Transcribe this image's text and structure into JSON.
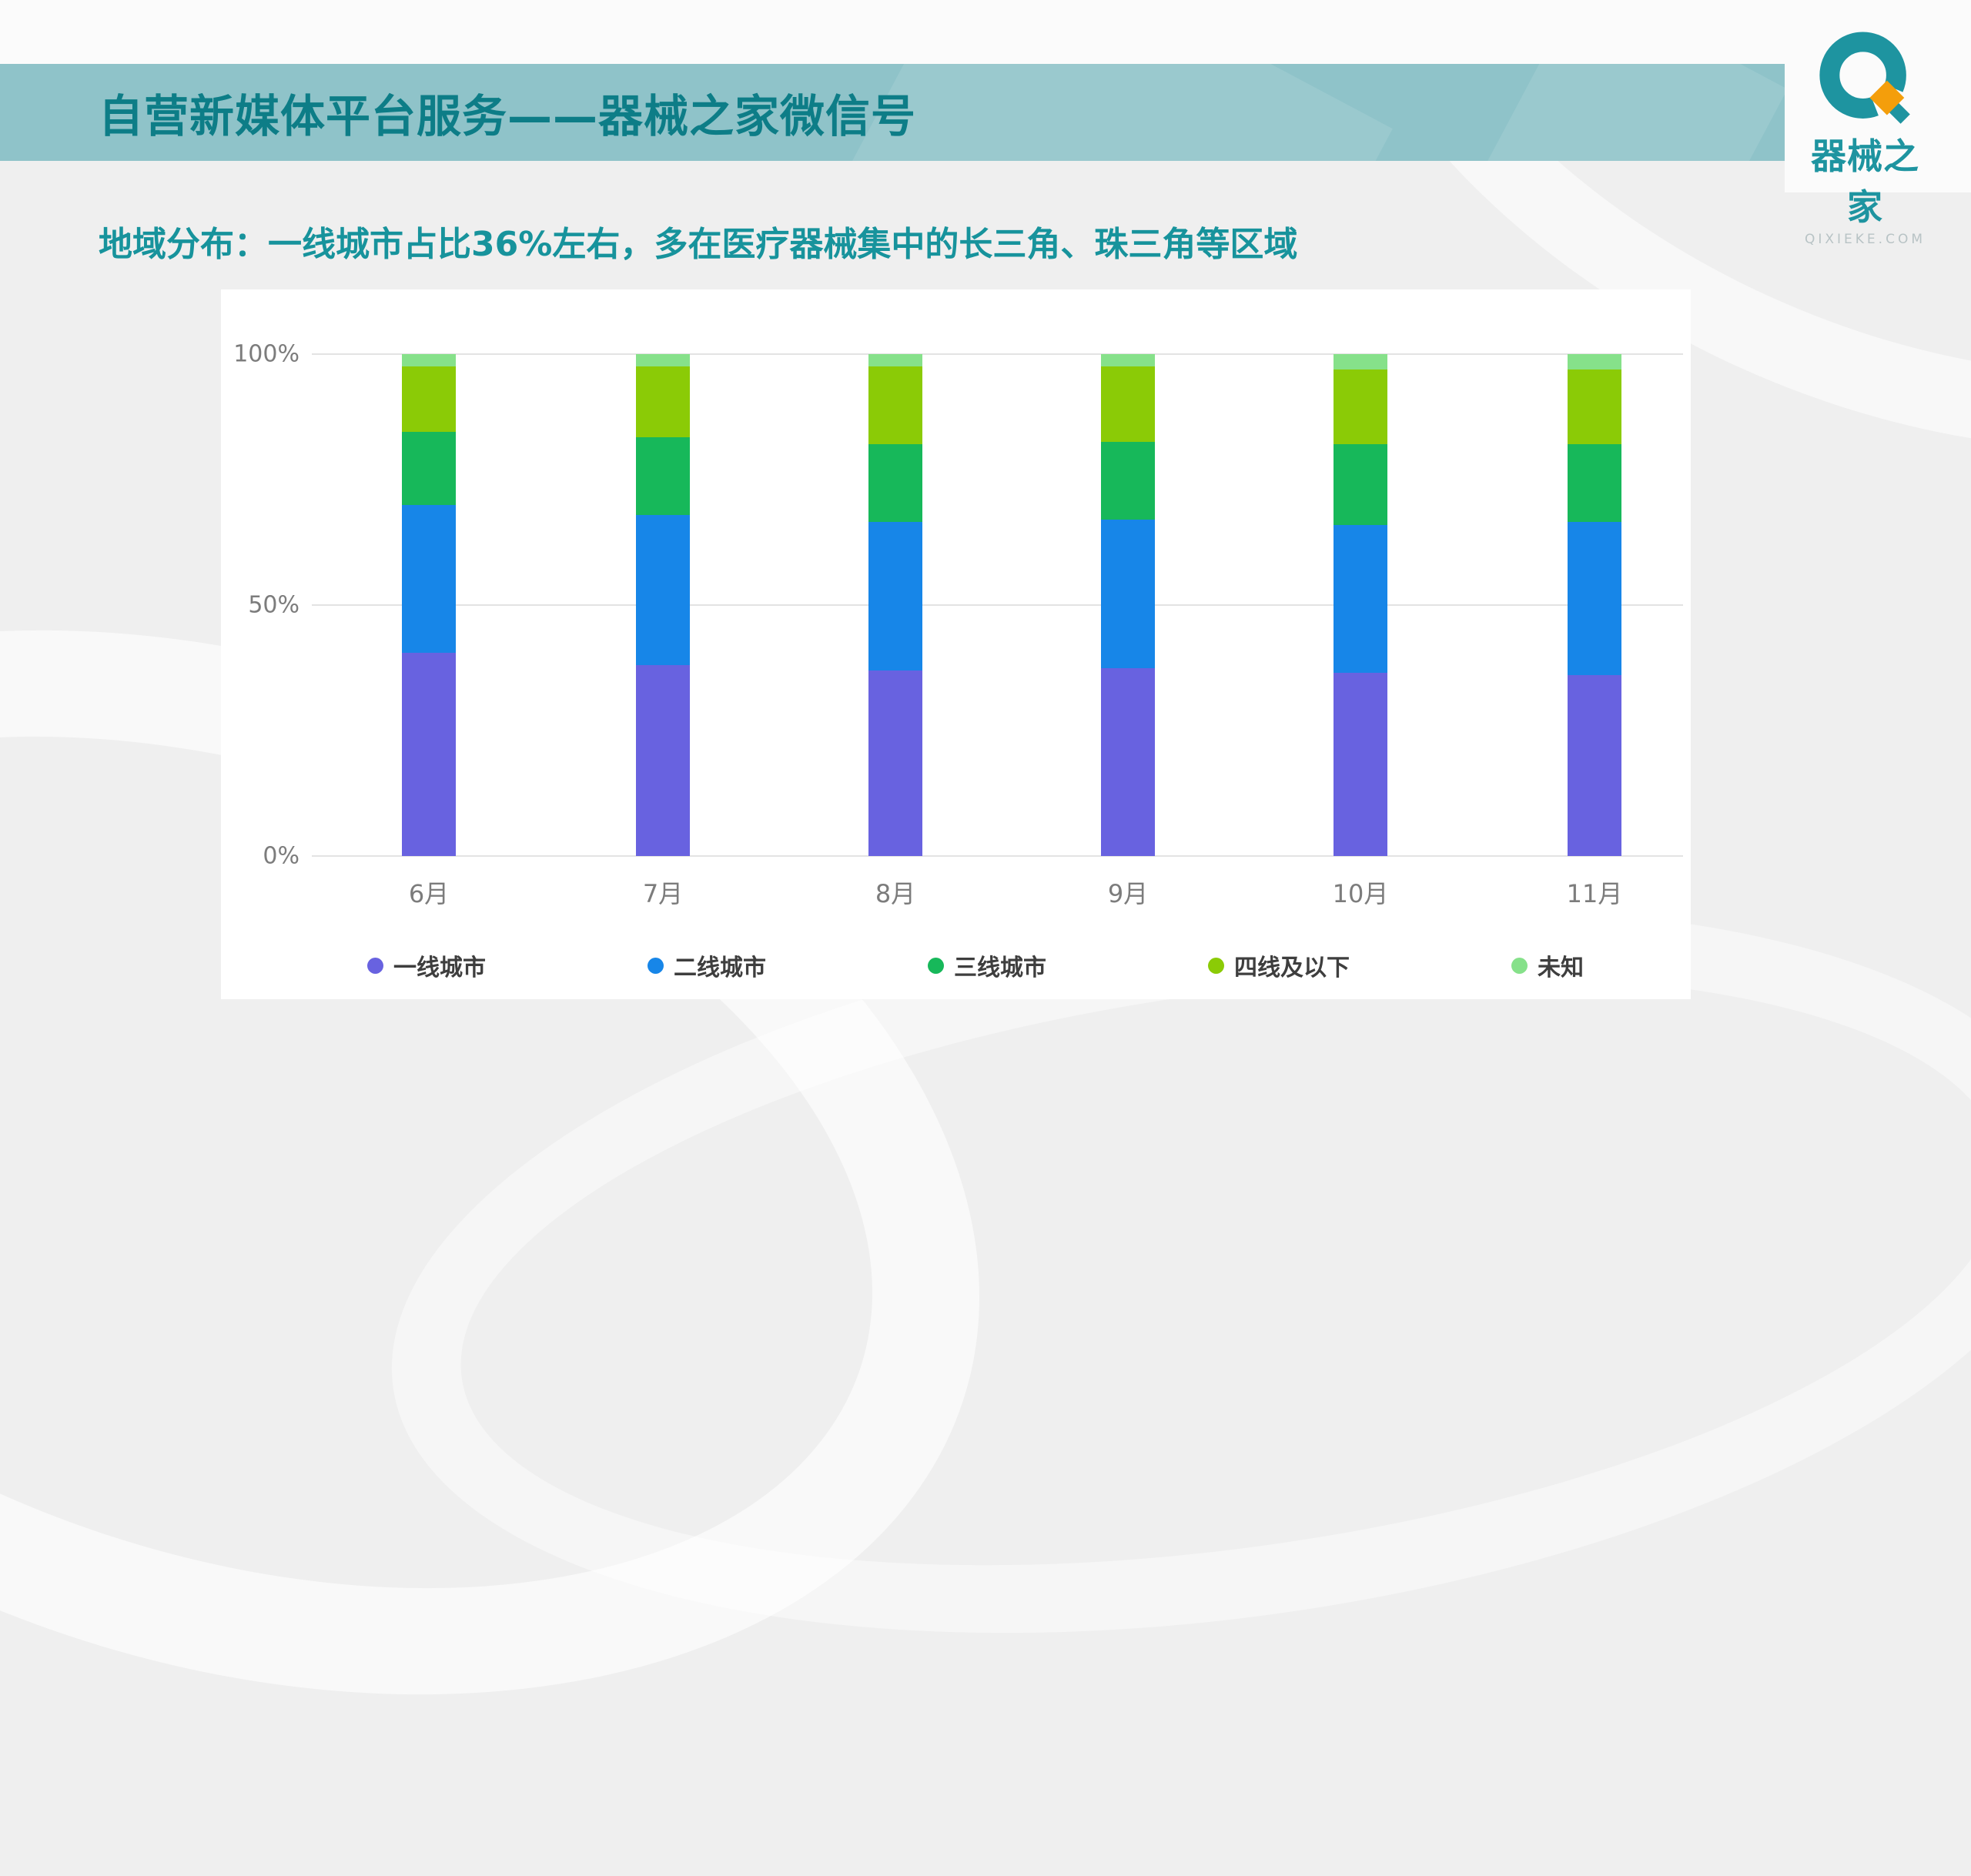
{
  "slide": {
    "title": "自营新媒体平台服务——器械之家微信号",
    "subtitle": "地域分布：一线城市占比36%左右，多在医疗器械集中的长三角、珠三角等区域"
  },
  "logo": {
    "name": "器械之家",
    "domain": "QIXIEKE.COM",
    "teal": "#1e94a0",
    "orange": "#f49e0b"
  },
  "colors": {
    "header_band": "#8fc3c9",
    "title_text": "#0d7d87",
    "subtitle_text": "#17939c",
    "slide_bg": "#efefef",
    "panel_bg": "#ffffff",
    "gridline": "#e3e3e3",
    "axis_label": "#7c7c7c",
    "legend_text": "#3e3e3e"
  },
  "chart_data": {
    "type": "bar",
    "stacked": true,
    "percent": true,
    "title": "",
    "xlabel": "",
    "ylabel": "",
    "categories": [
      "6月",
      "7月",
      "8月",
      "9月",
      "10月",
      "11月"
    ],
    "series": [
      {
        "name": "一线城市",
        "color": "#6862e0",
        "values": [
          40.5,
          38.0,
          37.0,
          37.5,
          36.5,
          36.0
        ]
      },
      {
        "name": "二线城市",
        "color": "#1786e8",
        "values": [
          29.5,
          30.0,
          29.5,
          29.5,
          29.5,
          30.5
        ]
      },
      {
        "name": "三线城市",
        "color": "#17b85a",
        "values": [
          14.5,
          15.5,
          15.5,
          15.5,
          16.0,
          15.5
        ]
      },
      {
        "name": "四线及以下",
        "color": "#8bcb06",
        "values": [
          13.0,
          14.0,
          15.5,
          15.0,
          15.0,
          15.0
        ]
      },
      {
        "name": "未知",
        "color": "#86e18a",
        "values": [
          2.5,
          2.5,
          2.5,
          2.5,
          3.0,
          3.0
        ]
      }
    ],
    "y_ticks": [
      "100%",
      "50%",
      "0%"
    ],
    "ylim": [
      0,
      100
    ],
    "grid": "horizontal",
    "legend_position": "bottom"
  }
}
